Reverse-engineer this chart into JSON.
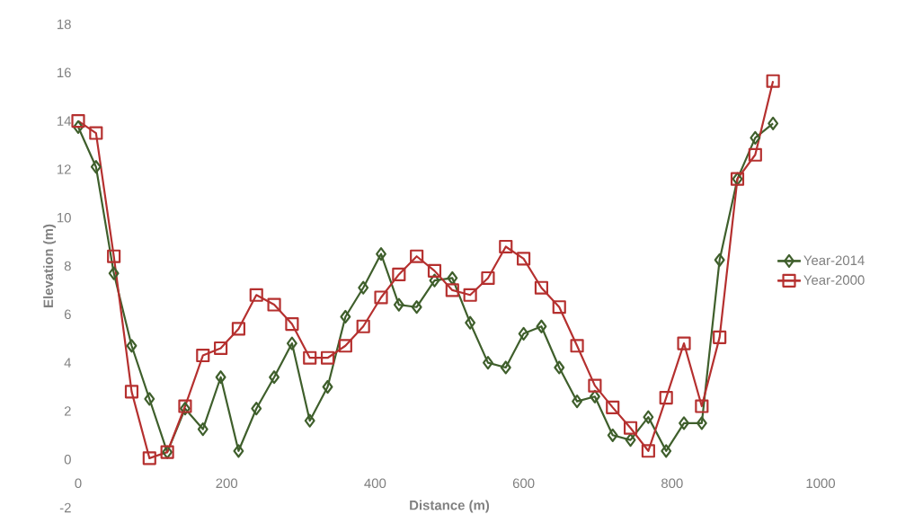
{
  "chart_data": {
    "type": "line",
    "xlabel": "Distance (m)",
    "ylabel": "Elevation (m)",
    "x": [
      0,
      24,
      48,
      72,
      96,
      120,
      144,
      168,
      192,
      216,
      240,
      264,
      288,
      312,
      336,
      360,
      384,
      408,
      432,
      456,
      480,
      504,
      528,
      552,
      576,
      600,
      624,
      648,
      672,
      696,
      720,
      744,
      768,
      792,
      816,
      840,
      864,
      888,
      912,
      936
    ],
    "series": [
      {
        "name": "Year-2014",
        "color": "#3f5f2c",
        "marker": "diamond",
        "values": [
          13.75,
          12.1,
          7.7,
          4.7,
          2.5,
          0.3,
          2.1,
          1.25,
          3.4,
          0.35,
          2.1,
          3.4,
          4.8,
          1.6,
          3.0,
          5.9,
          7.1,
          8.5,
          6.4,
          6.3,
          7.4,
          7.5,
          5.65,
          4.0,
          3.8,
          5.2,
          5.5,
          3.8,
          2.4,
          2.6,
          1.0,
          0.8,
          1.75,
          0.35,
          1.5,
          1.5,
          8.25,
          11.6,
          13.3,
          13.9
        ]
      },
      {
        "name": "Year-2000",
        "color": "#b5302f",
        "marker": "square",
        "values": [
          14.0,
          13.5,
          8.4,
          2.8,
          0.05,
          0.3,
          2.2,
          4.3,
          4.6,
          5.4,
          6.8,
          6.4,
          5.6,
          4.2,
          4.2,
          4.7,
          5.5,
          6.7,
          7.65,
          8.4,
          7.8,
          7.0,
          6.8,
          7.5,
          8.8,
          8.3,
          7.1,
          6.3,
          4.7,
          3.05,
          2.15,
          1.3,
          0.35,
          2.55,
          4.8,
          2.2,
          5.05,
          11.6,
          12.6,
          15.65
        ]
      }
    ],
    "xlim": [
      0,
      1000
    ],
    "xticks": [
      0,
      200,
      400,
      600,
      800,
      1000
    ],
    "ylim": [
      -2,
      18
    ],
    "yticks": [
      -2,
      0,
      2,
      4,
      6,
      8,
      10,
      12,
      14,
      16,
      18
    ],
    "legend": "right",
    "grid": false,
    "line_style": "solid"
  }
}
